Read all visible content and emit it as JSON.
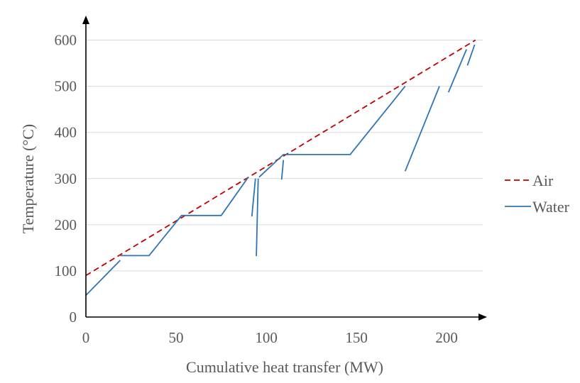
{
  "chart_data": {
    "type": "line",
    "xlabel": "Cumulative heat transfer (MW)",
    "ylabel": "Temperature (°C)",
    "xlim": [
      0,
      220
    ],
    "ylim": [
      0,
      650
    ],
    "xticks": [
      0,
      50,
      100,
      150,
      200
    ],
    "yticks": [
      0,
      100,
      200,
      300,
      400,
      500,
      600
    ],
    "x_tick_labels": [
      "0",
      "50",
      "100",
      "150",
      "200"
    ],
    "y_tick_labels": [
      "0",
      "100",
      "200",
      "300",
      "400",
      "500",
      "600"
    ],
    "grid": "horizontal",
    "legend_position": "right",
    "series": [
      {
        "name": "Air",
        "color": "#c00000",
        "style": "dashed",
        "segments": [
          [
            [
              0,
              90
            ],
            [
              216,
              600
            ]
          ]
        ]
      },
      {
        "name": "Water",
        "color": "#2e75b6",
        "style": "solid",
        "segments": [
          [
            [
              0,
              47
            ],
            [
              19,
              123
            ]
          ],
          [
            [
              19,
              133
            ],
            [
              35,
              133
            ],
            [
              53,
              220
            ],
            [
              75,
              220
            ],
            [
              90,
              303
            ]
          ],
          [
            [
              92,
              218
            ],
            [
              94,
              300
            ]
          ],
          [
            [
              94.5,
              132
            ],
            [
              95.5,
              300
            ]
          ],
          [
            [
              96,
              303
            ],
            [
              109.5,
              352
            ],
            [
              146.5,
              352
            ],
            [
              177,
              500
            ]
          ],
          [
            [
              108.5,
              298
            ],
            [
              109.5,
              340
            ]
          ],
          [
            [
              177,
              316
            ],
            [
              196,
              500
            ]
          ],
          [
            [
              201,
              487
            ],
            [
              211,
              580
            ]
          ],
          [
            [
              211.5,
              545
            ],
            [
              215.5,
              590
            ]
          ]
        ]
      }
    ]
  }
}
